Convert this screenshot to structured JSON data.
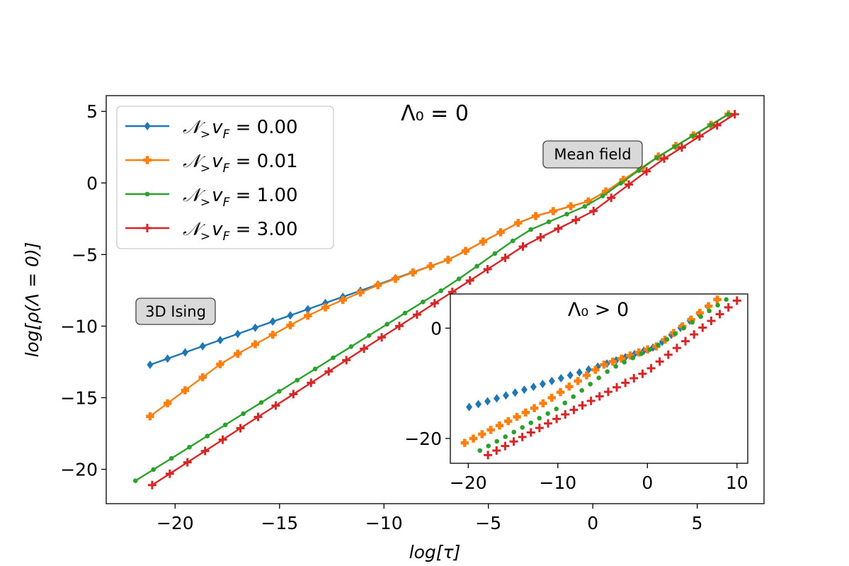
{
  "chart_data": {
    "type": "line",
    "main": {
      "title": "Λ₀ = 0",
      "xlabel": "log[τ]",
      "ylabel": "log[ρ(Λ = 0)]",
      "xlim": [
        -23.3,
        8.2
      ],
      "ylim": [
        -22.4,
        6.1
      ],
      "xticks": [
        -20,
        -15,
        -10,
        -5,
        0,
        5
      ],
      "yticks": [
        -20,
        -15,
        -10,
        -5,
        0,
        5
      ],
      "xtick_labels": [
        "−20",
        "−15",
        "−10",
        "−5",
        "0",
        "5"
      ],
      "ytick_labels": [
        "−20",
        "−15",
        "−10",
        "−5",
        "0",
        "5"
      ],
      "annotations": [
        {
          "text": "3D Ising",
          "x": -19.8,
          "y": -8.9
        },
        {
          "text": "Mean field",
          "x": -0.9,
          "y": 2.1
        }
      ],
      "legend": {
        "placement": "upper-left",
        "prefix": "𝒩",
        "subscript": ">",
        "mid": "v",
        "mid_subscript": "F",
        "equals": " = "
      },
      "series": [
        {
          "name": "0.00",
          "color": "#1f77b4",
          "marker": "diamond",
          "x_start": -21.2,
          "x_end": 6.5,
          "n": 34,
          "x": [
            -21.2,
            -6.8,
            -3.2,
            0.0,
            3.2,
            6.5
          ],
          "y": [
            -12.7,
            -5.3,
            -2.5,
            -1.2,
            1.9,
            4.8
          ]
        },
        {
          "name": "0.01",
          "color": "#ff7f0e",
          "marker": "plus-filled",
          "x_start": -21.2,
          "x_end": 6.5,
          "n": 34,
          "x": [
            -21.2,
            -17.6,
            -13.3,
            -10.4,
            -6.8,
            -3.2,
            0.0,
            3.2,
            6.5
          ],
          "y": [
            -16.3,
            -12.4,
            -9.0,
            -7.2,
            -5.3,
            -2.5,
            -1.2,
            1.9,
            4.8
          ]
        },
        {
          "name": "1.00",
          "color": "#2ca02c",
          "marker": "point",
          "x_start": -21.9,
          "x_end": 6.5,
          "n": 34,
          "x": [
            -21.9,
            -6.8,
            -3.2,
            0.0,
            3.2,
            6.5
          ],
          "y": [
            -20.8,
            -7.1,
            -3.4,
            -1.4,
            1.9,
            4.8
          ]
        },
        {
          "name": "3.00",
          "color": "#d62728",
          "marker": "plus",
          "x_start": -21.1,
          "x_end": 6.8,
          "n": 34,
          "x": [
            -21.1,
            -3.2,
            0.0,
            3.2,
            6.8
          ],
          "y": [
            -21.1,
            -4.3,
            -2.0,
            1.5,
            4.8
          ]
        }
      ]
    },
    "inset": {
      "title": "Λ₀ > 0",
      "xlim": [
        -22.0,
        11.2
      ],
      "ylim": [
        -24.5,
        6.2
      ],
      "xticks": [
        -20,
        -10,
        0,
        10
      ],
      "yticks": [
        -20,
        0
      ],
      "xtick_labels": [
        "−20",
        "−10",
        "0",
        "10"
      ],
      "ytick_labels": [
        "−20",
        "0"
      ],
      "series": [
        {
          "name": "0.00",
          "color": "#1f77b4",
          "marker": "diamond",
          "x": [
            -19.9,
            -5.0,
            1.0,
            7.8
          ],
          "y": [
            -14.3,
            -6.7,
            -3.3,
            5.2
          ],
          "n": 28
        },
        {
          "name": "0.01",
          "color": "#ff7f0e",
          "marker": "plus-filled",
          "x": [
            -20.4,
            -12.0,
            -5.0,
            1.0,
            7.8
          ],
          "y": [
            -20.8,
            -14.0,
            -6.7,
            -3.3,
            5.2
          ],
          "n": 30
        },
        {
          "name": "1.00",
          "color": "#2ca02c",
          "marker": "point",
          "x": [
            -18.7,
            -10.0,
            -4.0,
            1.0,
            8.8
          ],
          "y": [
            -22.2,
            -14.5,
            -7.3,
            -3.3,
            5.2
          ],
          "n": 30
        },
        {
          "name": "3.00",
          "color": "#d62728",
          "marker": "plus",
          "x": [
            -17.8,
            0.0,
            10.0
          ],
          "y": [
            -23.0,
            -7.8,
            5.0
          ],
          "n": 30
        }
      ]
    }
  }
}
